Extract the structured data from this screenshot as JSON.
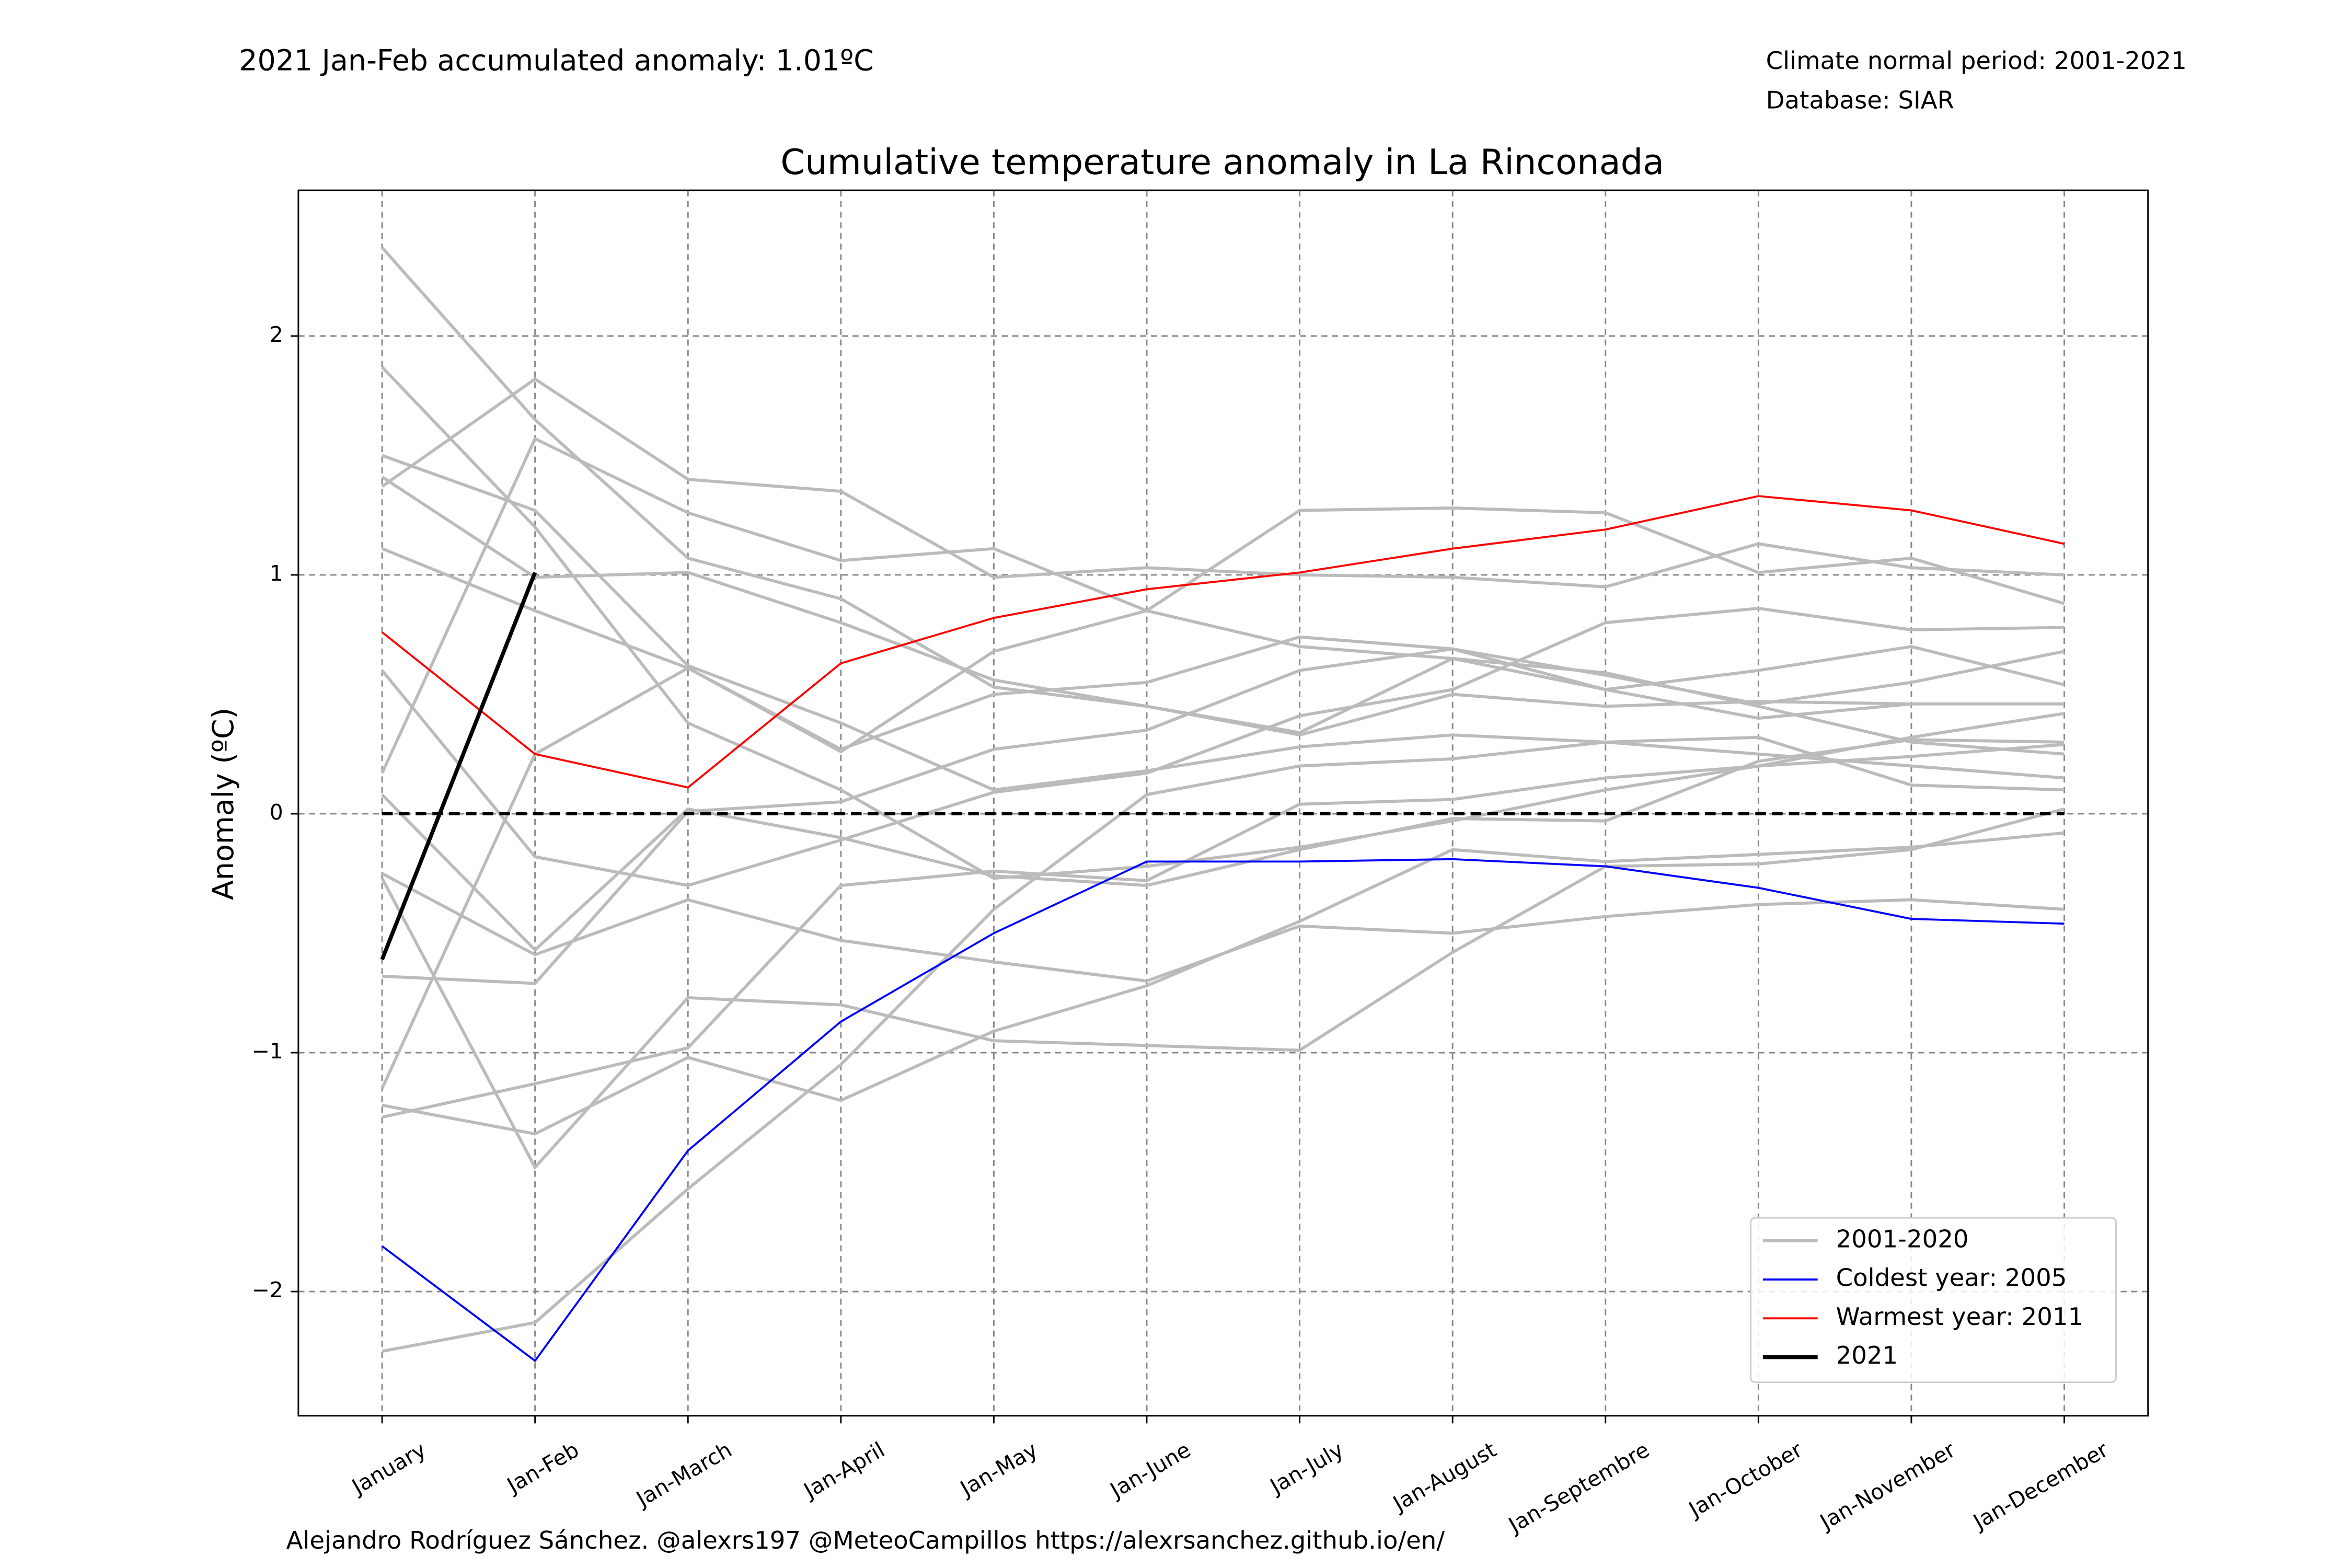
{
  "chart_data": {
    "type": "line",
    "title": "Cumulative temperature anomaly in La Rinconada",
    "annotation": "2021 Jan-Feb accumulated anomaly: 1.01ºC",
    "annotation_color": "#ff0000",
    "notes": [
      "Climate normal period: 2001-2021",
      "Database: SIAR"
    ],
    "footer": "Alejandro Rodríguez Sánchez. @alexrs197 @MeteoCampillos   https://alexrsanchez.github.io/en/",
    "ylabel": "Anomaly (ºC)",
    "categories": [
      "January",
      "Jan-Feb",
      "Jan-March",
      "Jan-April",
      "Jan-May",
      "Jan-June",
      "Jan-July",
      "Jan-August",
      "Jan-Septembre",
      "Jan-October",
      "Jan-November",
      "Jan-December"
    ],
    "ylim": [
      -2.52,
      2.61
    ],
    "yticks": [
      {
        "value": -2,
        "label": "−2"
      },
      {
        "value": -1,
        "label": "−1"
      },
      0,
      1,
      2
    ],
    "grid": true,
    "hline": {
      "value": 0,
      "color": "#000000"
    },
    "legend": "lower right",
    "series": [
      {
        "name": "2001-2020",
        "color": "#bbbbbb",
        "width": 2,
        "values": [
          [
            2.37,
            1.65,
            1.07,
            0.9,
            0.53,
            0.45,
            0.33,
            0.5,
            0.45,
            0.47,
            0.46,
            0.46
          ],
          [
            1.87,
            1.2,
            0.38,
            0.1,
            -0.27,
            -0.22,
            -0.14,
            -0.03,
            0.1,
            0.2,
            0.32,
            0.42
          ],
          [
            1.5,
            1.27,
            0.62,
            0.38,
            0.1,
            0.18,
            0.28,
            0.33,
            0.3,
            0.25,
            0.2,
            0.15
          ],
          [
            1.41,
            0.99,
            1.01,
            0.8,
            0.56,
            0.45,
            0.34,
            0.65,
            0.59,
            0.45,
            0.3,
            0.25
          ],
          [
            1.37,
            1.82,
            1.4,
            1.35,
            0.99,
            1.03,
            1.0,
            0.99,
            0.95,
            1.13,
            1.03,
            1.0
          ],
          [
            1.11,
            0.85,
            0.61,
            0.26,
            0.68,
            0.85,
            1.27,
            1.28,
            1.26,
            1.01,
            1.07,
            0.88
          ],
          [
            0.6,
            -0.18,
            -0.3,
            -0.11,
            0.09,
            0.17,
            0.41,
            0.52,
            0.8,
            0.86,
            0.77,
            0.78
          ],
          [
            0.17,
            1.57,
            1.26,
            1.06,
            1.11,
            0.85,
            0.7,
            0.65,
            0.52,
            0.6,
            0.7,
            0.54
          ],
          [
            0.08,
            -0.57,
            0.02,
            -0.1,
            -0.26,
            -0.3,
            -0.15,
            -0.02,
            -0.03,
            0.22,
            0.31,
            0.3
          ],
          [
            -0.25,
            -0.59,
            -0.36,
            -0.53,
            -0.62,
            -0.7,
            -0.47,
            -0.5,
            -0.43,
            -0.38,
            -0.36,
            -0.4
          ],
          [
            -0.27,
            -1.48,
            -0.77,
            -0.8,
            -0.95,
            -0.97,
            -0.99,
            -0.58,
            -0.22,
            -0.21,
            -0.15,
            0.02
          ],
          [
            -0.68,
            -0.71,
            0.01,
            0.05,
            0.27,
            0.35,
            0.6,
            0.69,
            0.58,
            0.46,
            0.55,
            0.68
          ],
          [
            -1.15,
            0.25,
            0.61,
            0.27,
            0.5,
            0.55,
            0.74,
            0.69,
            0.52,
            0.4,
            0.46,
            0.46
          ],
          [
            -1.22,
            -1.34,
            -1.02,
            -1.2,
            -0.91,
            -0.72,
            -0.45,
            -0.15,
            -0.2,
            -0.17,
            -0.14,
            -0.08
          ],
          [
            -1.27,
            -1.13,
            -0.98,
            -0.3,
            -0.24,
            -0.28,
            0.04,
            0.06,
            0.15,
            0.2,
            0.24,
            0.29
          ],
          [
            -2.25,
            -2.13,
            -1.57,
            -1.05,
            -0.4,
            0.08,
            0.2,
            0.23,
            0.3,
            0.32,
            0.12,
            0.1
          ]
        ]
      },
      {
        "name": "Coldest year: 2005",
        "color": "#0000ff",
        "width": 1.3,
        "values": [
          -1.81,
          -2.29,
          -1.41,
          -0.87,
          -0.5,
          -0.2,
          -0.2,
          -0.19,
          -0.22,
          -0.31,
          -0.44,
          -0.46
        ]
      },
      {
        "name": "Warmest year: 2011",
        "color": "#ff0000",
        "width": 1.3,
        "values": [
          0.76,
          0.25,
          0.11,
          0.63,
          0.82,
          0.94,
          1.01,
          1.11,
          1.19,
          1.33,
          1.27,
          1.13
        ]
      },
      {
        "name": "2021",
        "color": "#000000",
        "width": 2.6,
        "values": [
          -0.61,
          1.01,
          null,
          null,
          null,
          null,
          null,
          null,
          null,
          null,
          null,
          null
        ]
      }
    ]
  }
}
